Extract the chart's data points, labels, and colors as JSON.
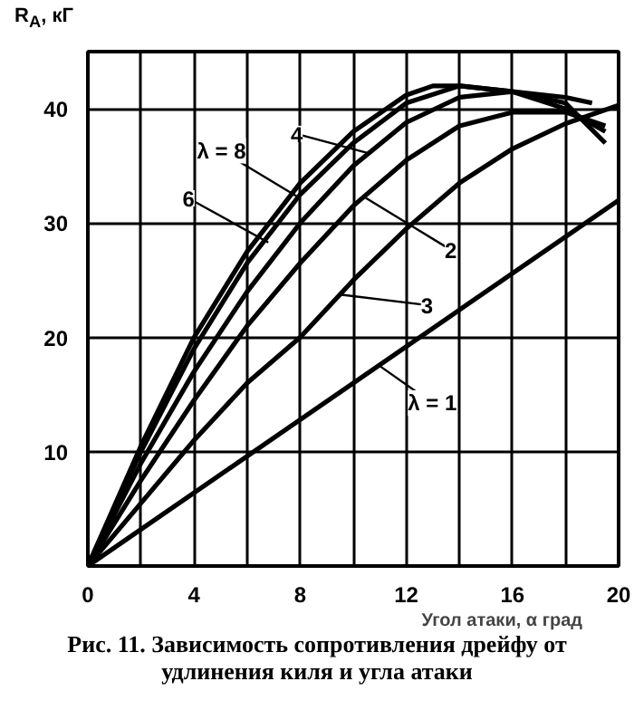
{
  "chart_data": {
    "type": "line",
    "xlabel": "Угол атаки, α град",
    "ylabel": "R$_{A}$, кГ",
    "xlim": [
      0,
      20
    ],
    "ylim": [
      0,
      45
    ],
    "xticks": [
      0,
      {
        "value": 2,
        "label": null
      },
      4,
      {
        "value": 6,
        "label": null
      },
      8,
      {
        "value": 10,
        "label": null
      },
      12,
      {
        "value": 14,
        "label": null
      },
      16,
      {
        "value": 18,
        "label": null
      },
      20
    ],
    "yticks": [
      {
        "value": 0,
        "label": null
      },
      10,
      20,
      30,
      40
    ],
    "grid": true,
    "marker": "none",
    "line_style": "solid",
    "series": [
      {
        "color": "#000000",
        "x": [
          0,
          2,
          4,
          6,
          8,
          10,
          12,
          13,
          14,
          16,
          18,
          19.5
        ],
        "values": [
          0,
          10.5,
          20,
          27.5,
          33.5,
          38,
          41.2,
          42,
          42,
          41.5,
          40,
          38
        ]
      },
      {
        "color": "#000000",
        "x": [
          0,
          2,
          4,
          6,
          8,
          10,
          12,
          14,
          16,
          18,
          19.5
        ],
        "values": [
          0,
          10,
          19,
          26.5,
          32.5,
          37,
          40.5,
          42,
          41.5,
          40.5,
          37
        ]
      },
      {
        "color": "#000000",
        "x": [
          0,
          2,
          4,
          6,
          8,
          10,
          12,
          14,
          16,
          18,
          19
        ],
        "values": [
          0,
          9,
          17,
          24,
          30,
          35,
          38.8,
          41,
          41.5,
          41,
          40.5
        ]
      },
      {
        "color": "#000000",
        "x": [
          0,
          2,
          4,
          6,
          8,
          10,
          12,
          14,
          16,
          18,
          19.5
        ],
        "values": [
          0,
          7.5,
          14.5,
          21,
          26.5,
          31.5,
          35.5,
          38.5,
          39.7,
          39.7,
          38.5
        ]
      },
      {
        "color": "#000000",
        "x": [
          0,
          2,
          4,
          6,
          8,
          10,
          12,
          14,
          16,
          18,
          20
        ],
        "values": [
          0,
          5.5,
          11,
          16,
          20,
          25,
          29.5,
          33.5,
          36.5,
          38.7,
          40.3
        ]
      },
      {
        "color": "#000000",
        "x": [
          0,
          20
        ],
        "values": [
          0,
          32
        ]
      }
    ],
    "annotations": [
      {
        "text": "λ = 8",
        "x": 7.9,
        "y": 32.3
      },
      {
        "text": "6",
        "x": 6.8,
        "y": 28.3
      },
      {
        "text": "4",
        "x": 10.6,
        "y": 36.1
      },
      {
        "text": "2",
        "x": 10.4,
        "y": 32.3
      },
      {
        "text": "3",
        "x": 9.5,
        "y": 23.75
      },
      {
        "text": "λ = 1",
        "x": 11,
        "y": 17.5
      },
      "Рис. 11. Зависимость сопротивления дрейфу от удлинения киля и угла атаки"
    ]
  }
}
